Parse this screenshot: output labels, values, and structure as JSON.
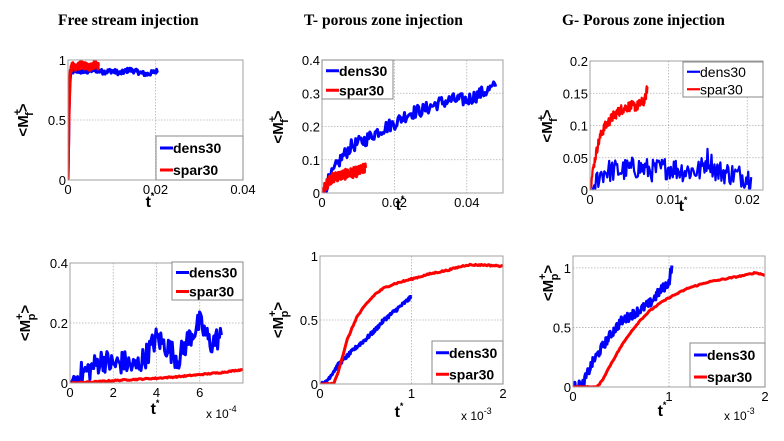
{
  "titles": [
    "Free stream injection",
    "T- porous zone injection",
    "G- Porous zone injection"
  ],
  "colors": {
    "dens30": "#0000ff",
    "spar30": "#ff0000",
    "grid": "#b0b0b0",
    "axis": "#a0a0a0"
  },
  "chart_data": [
    {
      "type": "line",
      "title": "Free stream injection",
      "xlabel": "t*",
      "ylabel": "<Mf+>",
      "xlim": [
        0,
        0.04
      ],
      "ylim": [
        0,
        1
      ],
      "xticks": [
        0,
        0.02,
        0.04
      ],
      "xtick_labels": [
        "0",
        "0.02",
        "0.04"
      ],
      "yticks": [
        0,
        0.5,
        1
      ],
      "ytick_labels": [
        "0",
        "0.5",
        "1"
      ],
      "x_exponent": "",
      "grid": true,
      "legend": "bottom-right",
      "legend_style": "bold",
      "series": [
        {
          "name": "dens30",
          "x": [
            0,
            0.0003,
            0.0006,
            0.002,
            0.004,
            0.006,
            0.008,
            0.01,
            0.012,
            0.014,
            0.016,
            0.018,
            0.0205
          ],
          "y": [
            0,
            0.7,
            0.9,
            0.91,
            0.9,
            0.92,
            0.9,
            0.91,
            0.89,
            0.92,
            0.9,
            0.88,
            0.91
          ],
          "noise": 0.02
        },
        {
          "name": "spar30",
          "x": [
            0,
            0.0002,
            0.0005,
            0.001,
            0.002,
            0.003,
            0.004,
            0.005,
            0.006,
            0.007
          ],
          "y": [
            0,
            0.5,
            0.9,
            0.95,
            0.94,
            0.96,
            0.95,
            0.94,
            0.96,
            0.95
          ],
          "noise": 0.03
        }
      ]
    },
    {
      "type": "line",
      "title": "T- porous zone injection",
      "xlabel": "t*",
      "ylabel": "<Mf+>",
      "xlim": [
        0,
        0.05
      ],
      "ylim": [
        0,
        0.4
      ],
      "xticks": [
        0,
        0.02,
        0.04
      ],
      "xtick_labels": [
        "0",
        "0.02",
        "0.04"
      ],
      "yticks": [
        0,
        0.1,
        0.2,
        0.3,
        0.4
      ],
      "ytick_labels": [
        "0",
        "0.1",
        "0.2",
        "0.3",
        "0.4"
      ],
      "x_exponent": "",
      "grid": true,
      "legend": "top-left",
      "legend_style": "bold",
      "series": [
        {
          "name": "dens30",
          "x": [
            0,
            0.002,
            0.005,
            0.008,
            0.012,
            0.016,
            0.02,
            0.024,
            0.028,
            0.032,
            0.036,
            0.04,
            0.044,
            0.048
          ],
          "y": [
            0,
            0.04,
            0.1,
            0.14,
            0.16,
            0.19,
            0.21,
            0.24,
            0.25,
            0.27,
            0.28,
            0.28,
            0.3,
            0.32
          ],
          "noise": 0.02
        },
        {
          "name": "spar30",
          "x": [
            0,
            0.001,
            0.002,
            0.004,
            0.006,
            0.008,
            0.01,
            0.012
          ],
          "y": [
            0,
            0.02,
            0.04,
            0.05,
            0.055,
            0.06,
            0.065,
            0.075
          ],
          "noise": 0.015
        }
      ]
    },
    {
      "type": "line",
      "title": "G- Porous zone injection",
      "xlabel": "t*",
      "ylabel": "<Mf+>",
      "xlim": [
        0,
        0.022
      ],
      "ylim": [
        0,
        0.2
      ],
      "xticks": [
        0,
        0.01,
        0.02
      ],
      "xtick_labels": [
        "0",
        "0.01",
        "0.02"
      ],
      "yticks": [
        0,
        0.05,
        0.1,
        0.15,
        0.2
      ],
      "ytick_labels": [
        "0",
        "0.05",
        "0.1",
        "0.15",
        "0.2"
      ],
      "x_exponent": "",
      "grid": true,
      "legend": "top-right",
      "legend_style": "normal",
      "series": [
        {
          "name": "dens30",
          "x": [
            0.0003,
            0.001,
            0.002,
            0.004,
            0.006,
            0.008,
            0.01,
            0.012,
            0.014,
            0.015,
            0.016,
            0.018,
            0.02,
            0.0205
          ],
          "y": [
            0,
            0.02,
            0.03,
            0.03,
            0.035,
            0.03,
            0.035,
            0.03,
            0.03,
            0.05,
            0.03,
            0.025,
            0.02,
            0.02
          ],
          "noise": 0.018
        },
        {
          "name": "spar30",
          "x": [
            0,
            0.0005,
            0.001,
            0.0015,
            0.002,
            0.003,
            0.004,
            0.005,
            0.006,
            0.007,
            0.0073
          ],
          "y": [
            0,
            0.04,
            0.07,
            0.09,
            0.1,
            0.115,
            0.125,
            0.13,
            0.13,
            0.14,
            0.16
          ],
          "noise": 0.008
        }
      ]
    },
    {
      "type": "line",
      "title": "",
      "xlabel": "t*",
      "ylabel": "<Mp+>",
      "xlim": [
        0,
        0.0008
      ],
      "ylim": [
        0,
        0.4
      ],
      "xticks": [
        0,
        0.0002,
        0.0004,
        0.0006
      ],
      "xtick_labels": [
        "0",
        "2",
        "4",
        "6"
      ],
      "yticks": [
        0,
        0.2,
        0.4
      ],
      "ytick_labels": [
        "0",
        "0.2",
        "0.4"
      ],
      "x_exponent": "x 10^-4",
      "grid": true,
      "legend": "top-right",
      "legend_style": "bold",
      "series": [
        {
          "name": "dens30",
          "x": [
            0,
            5e-05,
            0.0001,
            0.00015,
            0.0002,
            0.00025,
            0.0003,
            0.00035,
            0.0004,
            0.00045,
            0.0005,
            0.00055,
            0.0006,
            0.00065,
            0.0007
          ],
          "y": [
            0,
            0.03,
            0.05,
            0.08,
            0.06,
            0.07,
            0.05,
            0.09,
            0.15,
            0.12,
            0.08,
            0.15,
            0.2,
            0.13,
            0.16
          ],
          "noise": 0.04
        },
        {
          "name": "spar30",
          "x": [
            0,
            0.0001,
            0.0002,
            0.0003,
            0.0004,
            0.0005,
            0.0006,
            0.0007,
            0.0008
          ],
          "y": [
            0,
            0.003,
            0.008,
            0.012,
            0.016,
            0.021,
            0.028,
            0.035,
            0.045
          ],
          "noise": 0.002
        }
      ]
    },
    {
      "type": "line",
      "title": "",
      "xlabel": "t*",
      "ylabel": "<Mp+>",
      "xlim": [
        0,
        0.002
      ],
      "ylim": [
        0,
        1
      ],
      "xticks": [
        0,
        0.001,
        0.002
      ],
      "xtick_labels": [
        "0",
        "1",
        "2"
      ],
      "yticks": [
        0,
        0.5,
        1
      ],
      "ytick_labels": [
        "0",
        "0.5",
        "1"
      ],
      "x_exponent": "x 10^-3",
      "grid": true,
      "legend": "bottom-right",
      "legend_style": "bold",
      "series": [
        {
          "name": "dens30",
          "x": [
            0,
            5e-05,
            0.0001,
            0.0002,
            0.0003,
            0.0004,
            0.0005,
            0.0006,
            0.0007,
            0.0008,
            0.0009,
            0.001
          ],
          "y": [
            0,
            0,
            0.05,
            0.15,
            0.22,
            0.29,
            0.35,
            0.42,
            0.5,
            0.56,
            0.62,
            0.68
          ],
          "noise": 0.015
        },
        {
          "name": "spar30",
          "x": [
            0,
            0.00015,
            0.0002,
            0.0003,
            0.0004,
            0.0005,
            0.0006,
            0.0007,
            0.0008,
            0.001,
            0.0012,
            0.0014,
            0.0016,
            0.0018,
            0.002
          ],
          "y": [
            0,
            0,
            0.1,
            0.35,
            0.52,
            0.62,
            0.7,
            0.75,
            0.78,
            0.82,
            0.86,
            0.89,
            0.93,
            0.93,
            0.92
          ],
          "noise": 0.006
        }
      ]
    },
    {
      "type": "line",
      "title": "",
      "xlabel": "t*",
      "ylabel": "<Mp+>",
      "xlim": [
        0,
        0.002
      ],
      "ylim": [
        0,
        1.1
      ],
      "xticks": [
        0,
        0.001,
        0.002
      ],
      "xtick_labels": [
        "0",
        "1",
        "2"
      ],
      "yticks": [
        0,
        0.5,
        1
      ],
      "ytick_labels": [
        "0",
        "0.5",
        "1"
      ],
      "x_exponent": "x 10^-3",
      "grid": true,
      "legend": "bottom-right",
      "legend_style": "bold",
      "series": [
        {
          "name": "dens30",
          "x": [
            0,
            0.0001,
            0.0002,
            0.0003,
            0.0004,
            0.0005,
            0.0006,
            0.0007,
            0.0008,
            0.0009,
            0.001,
            0.00103
          ],
          "y": [
            0,
            0.02,
            0.2,
            0.33,
            0.45,
            0.55,
            0.6,
            0.65,
            0.7,
            0.8,
            0.88,
            1.02
          ],
          "noise": 0.04
        },
        {
          "name": "spar30",
          "x": [
            0,
            0.00025,
            0.0003,
            0.0004,
            0.0005,
            0.0006,
            0.0007,
            0.0008,
            0.0009,
            0.001,
            0.0012,
            0.0014,
            0.0016,
            0.0018,
            0.0019,
            0.002
          ],
          "y": [
            0,
            0,
            0.05,
            0.2,
            0.34,
            0.46,
            0.56,
            0.64,
            0.7,
            0.75,
            0.83,
            0.88,
            0.91,
            0.94,
            0.96,
            0.94
          ],
          "noise": 0.005
        }
      ]
    }
  ]
}
